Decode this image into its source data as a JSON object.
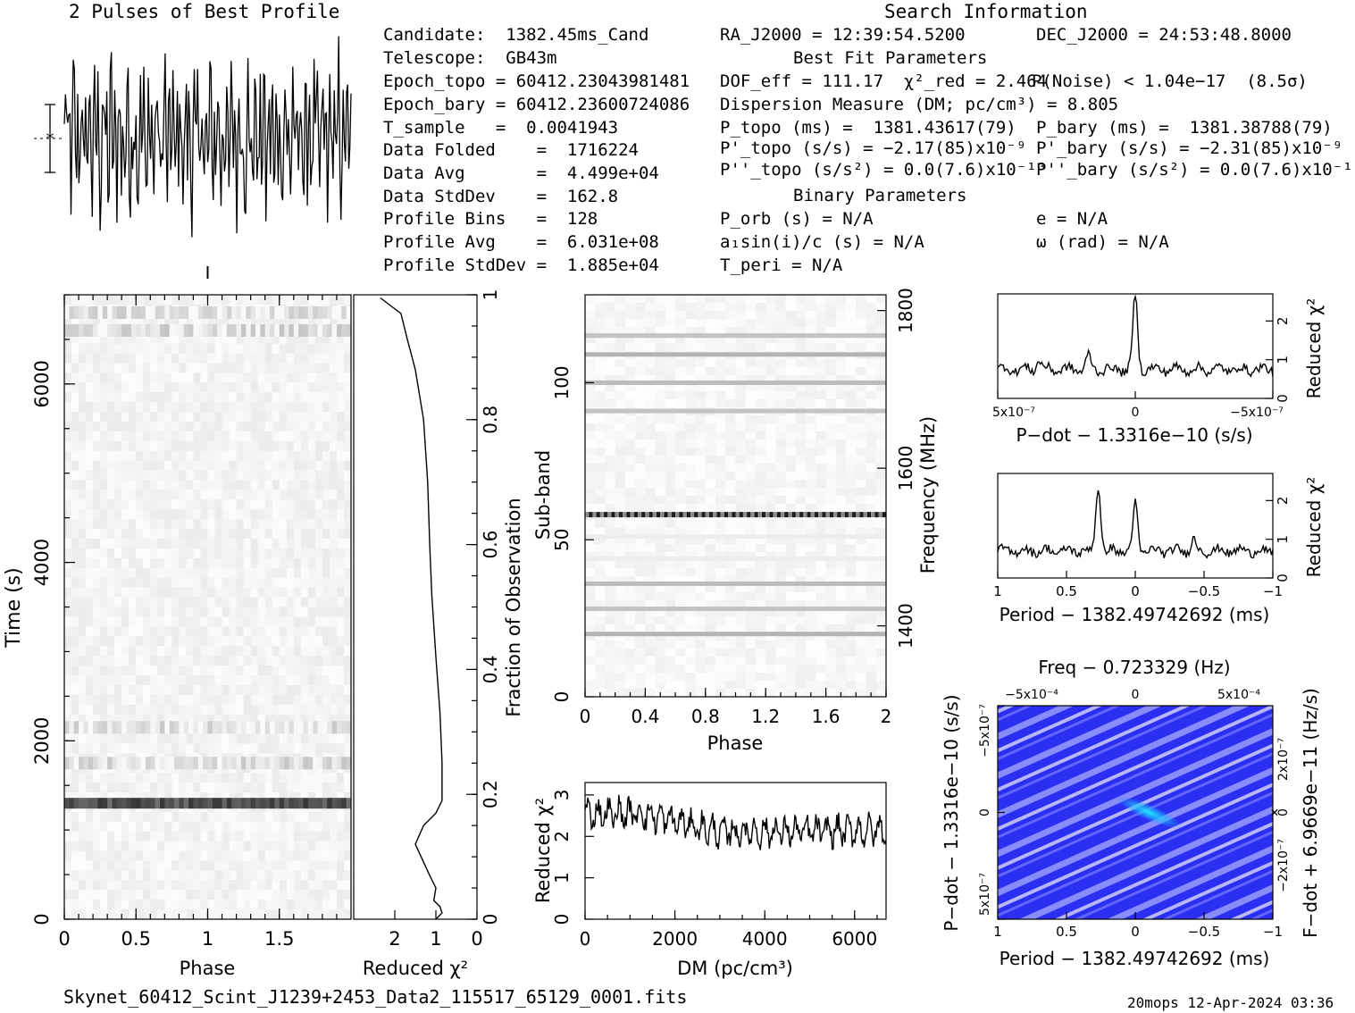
{
  "header": {
    "profile_title": "2 Pulses of Best Profile",
    "search_title": "Search Information",
    "best_fit_title": "Best Fit Parameters",
    "binary_title": "Binary Parameters"
  },
  "info_left": [
    "Candidate:  1382.45ms_Cand",
    "Telescope:  GB43m",
    "Epoch_topo = 60412.23043981481",
    "Epoch_bary = 60412.23600724086",
    "T_sample   =  0.0041943",
    "Data Folded    =  1716224",
    "Data Avg       =  4.499e+04",
    "Data StdDev    =  162.8",
    "Profile Bins   =  128",
    "Profile Avg    =  6.031e+08",
    "Profile StdDev =  1.885e+04"
  ],
  "info_mid": [
    "RA_J2000 = 12:39:54.5200",
    "DOF_eff = 111.17  χ²_red = 2.464",
    "Dispersion Measure (DM; pc/cm³) = 8.805",
    "P_topo (ms) =  1381.43617(79)",
    "P'_topo (s/s) = −2.17(85)x10⁻⁹",
    "P''_topo (s/s²) = 0.0(7.6)x10⁻¹³",
    "P_orb (s) = N/A",
    "a₁sin(i)/c (s) = N/A",
    "T_peri = N/A"
  ],
  "info_right": [
    "DEC_J2000 = 24:53:48.8000",
    "P(Noise) < 1.04e−17  (8.5σ)",
    "P_bary (ms) =  1381.38788(79)",
    "P'_bary (s/s) = −2.31(85)x10⁻⁹",
    "P''_bary (s/s²) = 0.0(7.6)x10⁻¹³",
    "e = N/A",
    "ω (rad) = N/A"
  ],
  "footer": {
    "filename": "Skynet_60412_Scint_J1239+2453_Data2_115517_65129_0001.fits",
    "stamp": "20mops 12-Apr-2024 03:36"
  },
  "colors": {
    "axis": "#000000",
    "trace": "#000000",
    "grey_band": "#555555",
    "ppdot_bg": "#2a2ef0",
    "ppdot_light": "#c8c8ff",
    "ppdot_peak": "#1fe0ff"
  },
  "chart_data": [
    {
      "id": "profile",
      "type": "line",
      "title": "2 Pulses of Best Profile",
      "x": "phase 0–2 (two pulses)",
      "xlim": [
        0,
        2
      ],
      "n_points": 256,
      "error_bar": true
    },
    {
      "id": "time_phase",
      "type": "heatmap",
      "xlabel": "Phase",
      "ylabel": "Time (s)",
      "xlim": [
        0,
        2
      ],
      "ylim": [
        0,
        7000
      ],
      "xticks": [
        "0",
        "0.5",
        "1",
        "1.5"
      ],
      "yticks": [
        "0",
        "2000",
        "4000",
        "6000"
      ],
      "features": [
        {
          "time": 1300,
          "strength": 0.85
        },
        {
          "time": 1750,
          "strength": 0.15
        },
        {
          "time": 2150,
          "strength": 0.12
        },
        {
          "time": 6600,
          "strength": 0.15
        },
        {
          "time": 6800,
          "strength": 0.12
        }
      ]
    },
    {
      "id": "redchi_time",
      "type": "line",
      "xlabel": "Reduced χ²",
      "ylabel": "Fraction of Observation",
      "xlim": [
        3,
        0
      ],
      "ylim": [
        0,
        1
      ],
      "xticks": [
        "2",
        "1",
        "0"
      ],
      "yticks": [
        "0",
        "0.2",
        "0.4",
        "0.6",
        "0.8",
        "1"
      ],
      "points": [
        [
          1.0,
          0.0
        ],
        [
          0.85,
          0.01
        ],
        [
          0.9,
          0.02
        ],
        [
          1.05,
          0.03
        ],
        [
          1.0,
          0.05
        ],
        [
          1.15,
          0.07
        ],
        [
          1.5,
          0.12
        ],
        [
          1.3,
          0.15
        ],
        [
          1.0,
          0.17
        ],
        [
          0.85,
          0.19
        ],
        [
          0.85,
          0.25
        ],
        [
          0.9,
          0.33
        ],
        [
          1.0,
          0.42
        ],
        [
          1.1,
          0.52
        ],
        [
          1.15,
          0.6
        ],
        [
          1.2,
          0.7
        ],
        [
          1.3,
          0.8
        ],
        [
          1.5,
          0.88
        ],
        [
          1.7,
          0.93
        ],
        [
          1.85,
          0.97
        ],
        [
          2.35,
          0.995
        ]
      ]
    },
    {
      "id": "subband_phase",
      "type": "heatmap",
      "xlabel": "Phase",
      "ylabel": "Sub-band",
      "y2label": "Frequency (MHz)",
      "xlim": [
        0,
        2
      ],
      "ylim": [
        0,
        128
      ],
      "y2lim": [
        1310,
        1820
      ],
      "xticks": [
        "0",
        "0.4",
        "0.8",
        "1.2",
        "1.6",
        "2"
      ],
      "yticks": [
        "0",
        "50",
        "100"
      ],
      "y2ticks": [
        "1400",
        "1600",
        "1800"
      ],
      "bands": [
        {
          "subband": 58,
          "strength": 0.95
        },
        {
          "subband": 115,
          "strength": 0.4
        },
        {
          "subband": 109,
          "strength": 0.5
        },
        {
          "subband": 100,
          "strength": 0.45
        },
        {
          "subband": 91,
          "strength": 0.4
        },
        {
          "subband": 51,
          "strength": 0.12
        },
        {
          "subband": 44,
          "strength": 0.12
        },
        {
          "subband": 36,
          "strength": 0.45
        },
        {
          "subband": 28,
          "strength": 0.4
        },
        {
          "subband": 20,
          "strength": 0.5
        }
      ]
    },
    {
      "id": "dm_chi",
      "type": "line",
      "xlabel": "DM (pc/cm³)",
      "ylabel": "Reduced χ²",
      "xlim": [
        0,
        6700
      ],
      "ylim": [
        0,
        3.3
      ],
      "xticks": [
        "0",
        "2000",
        "4000",
        "6000"
      ],
      "yticks": [
        "0",
        "1",
        "2",
        "3"
      ],
      "trend": [
        [
          0,
          2.55
        ],
        [
          1300,
          2.55
        ],
        [
          3000,
          2.1
        ],
        [
          6700,
          2.15
        ]
      ]
    },
    {
      "id": "pdot_chi",
      "type": "line",
      "xlabel": "P−dot − 1.3316e−10 (s/s)",
      "ylabel": "Reduced χ²",
      "xlim": [
        5e-07,
        -5e-07
      ],
      "ylim": [
        0,
        2.7
      ],
      "xticks": [
        "5x10⁻⁷",
        "0",
        "−5x10⁻⁷"
      ],
      "yticks": [
        "0",
        "1",
        "2"
      ],
      "peaks": [
        {
          "x": 0.0,
          "y": 2.65
        },
        {
          "x": 3.5e-07,
          "y": 1.0
        },
        {
          "x": 1.7e-07,
          "y": 1.1
        }
      ],
      "baseline": 0.75
    },
    {
      "id": "period_chi",
      "type": "line",
      "xlabel": "Period − 1382.49742692 (ms)",
      "ylabel": "Reduced χ²",
      "xlim": [
        1,
        -1
      ],
      "ylim": [
        0,
        2.7
      ],
      "xticks": [
        "1",
        "0.5",
        "0",
        "−0.5",
        "−1"
      ],
      "yticks": [
        "0",
        "1",
        "2"
      ],
      "peaks": [
        {
          "x": 0.27,
          "y": 2.4
        },
        {
          "x": 0.0,
          "y": 1.9
        },
        {
          "x": -0.42,
          "y": 1.0
        }
      ],
      "baseline": 0.7
    },
    {
      "id": "p_pdot",
      "type": "heatmap",
      "title": "Freq − 0.723329 (Hz)",
      "xlabel": "Period − 1382.49742692 (ms)",
      "ylabel": "P−dot − 1.3316e−10 (s/s)",
      "y2label": "F−dot + 6.9669e−11 (Hz/s)",
      "xlim": [
        1,
        -1
      ],
      "ylim": [
        -5e-07,
        5e-07
      ],
      "xticks": [
        "1",
        "0.5",
        "0",
        "−0.5",
        "−1"
      ],
      "x2ticks": [
        "−5x10⁻⁴",
        "0",
        "5x10⁻⁴"
      ],
      "yticks": [
        "−5x10⁻⁷",
        "0",
        "5x10⁻⁷"
      ],
      "y2ticks": [
        "2x10⁻⁷",
        "0",
        "−2x10⁻⁷"
      ],
      "peak": {
        "period": -0.1,
        "pdot": 0.0
      }
    }
  ]
}
